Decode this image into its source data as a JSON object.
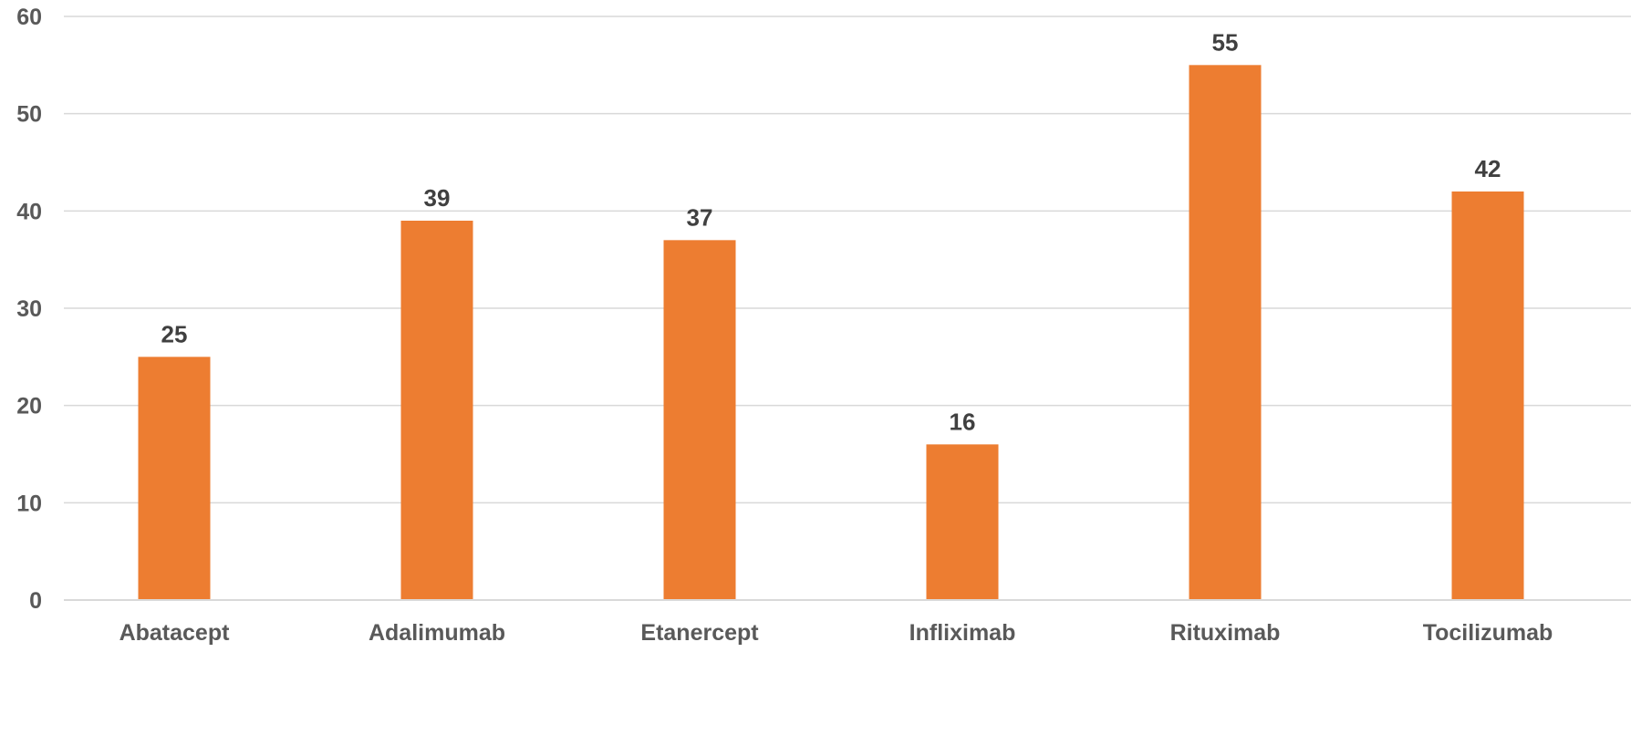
{
  "chart_data": {
    "type": "bar",
    "title": "",
    "xlabel": "",
    "ylabel": "",
    "categories": [
      "Abatacept",
      "Adalimumab",
      "Etanercept",
      "Infliximab",
      "Rituximab",
      "Tocilizumab"
    ],
    "values": [
      25,
      39,
      37,
      16,
      55,
      42
    ],
    "ylim": [
      0,
      60
    ],
    "yticks": [
      "0",
      "10",
      "20",
      "30",
      "40",
      "50",
      "60"
    ],
    "data_labels": [
      "25",
      "39",
      "37",
      "16",
      "55",
      "42"
    ],
    "grid": true,
    "legend": "none",
    "bar_color": "#ED7D31",
    "grid_color": "#D9D9D9",
    "tick_label_color": "#595959",
    "data_label_color": "#404040"
  }
}
